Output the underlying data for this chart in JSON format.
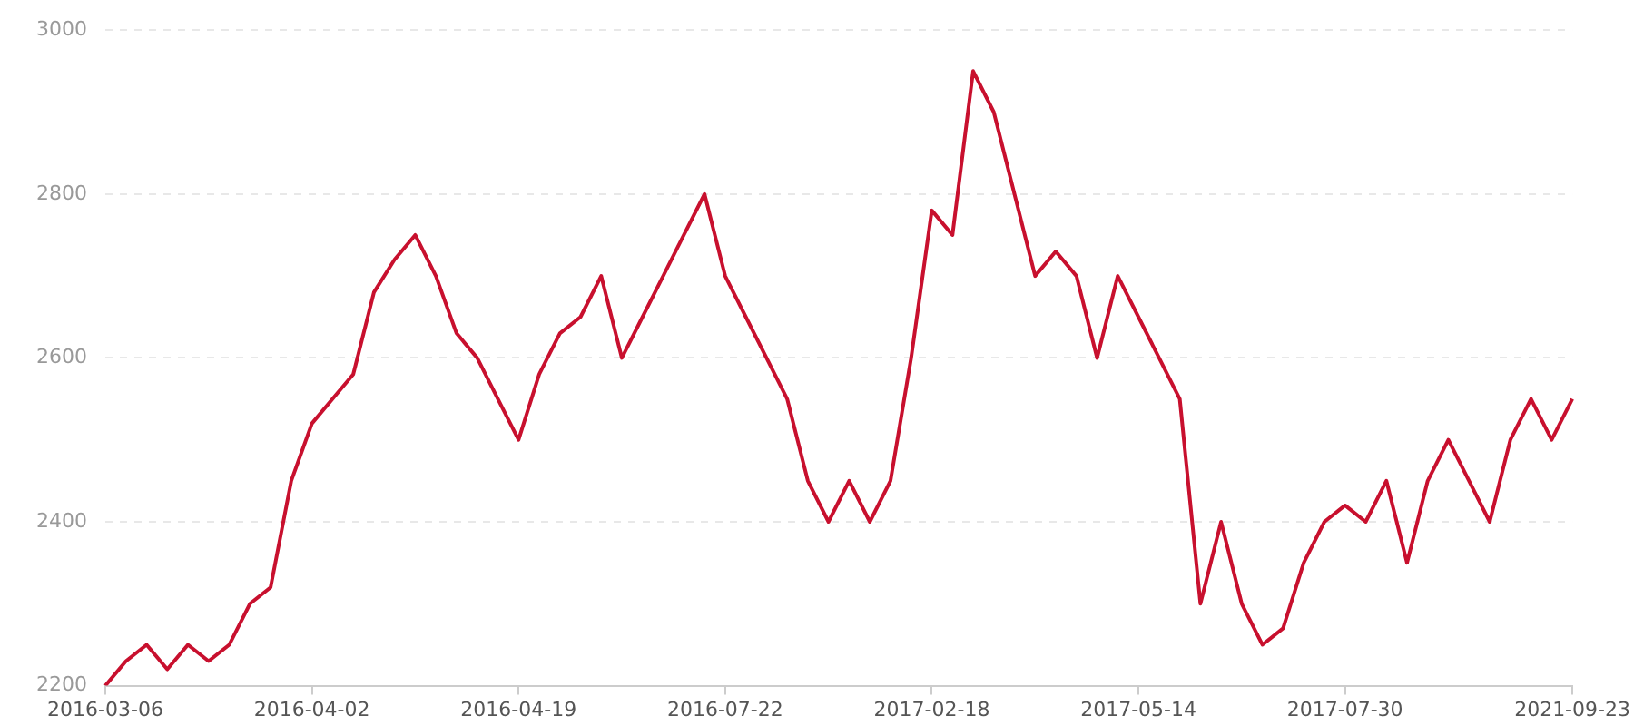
{
  "chart_data": {
    "type": "line",
    "categories": [
      "2016-03-06",
      null,
      null,
      null,
      null,
      null,
      null,
      null,
      null,
      null,
      "2016-04-02",
      null,
      null,
      null,
      null,
      null,
      null,
      null,
      null,
      null,
      "2016-04-19",
      null,
      null,
      null,
      null,
      null,
      null,
      null,
      null,
      null,
      "2016-07-22",
      null,
      null,
      null,
      null,
      null,
      null,
      null,
      null,
      null,
      "2017-02-18",
      null,
      null,
      null,
      null,
      null,
      null,
      null,
      null,
      null,
      "2017-05-14",
      null,
      null,
      null,
      null,
      null,
      null,
      null,
      null,
      null,
      "2017-07-30",
      null,
      null,
      null,
      null,
      null,
      null,
      null,
      null,
      null,
      null,
      "2021-09-23"
    ],
    "series": [
      {
        "color": "#c8102e",
        "values": [
          2200,
          2230,
          2250,
          2220,
          2250,
          2230,
          2250,
          2300,
          2320,
          2450,
          2520,
          2550,
          2580,
          2680,
          2720,
          2750,
          2700,
          2630,
          2600,
          2550,
          2500,
          2580,
          2630,
          2650,
          2700,
          2600,
          2650,
          2700,
          2750,
          2800,
          2700,
          2650,
          2600,
          2550,
          2450,
          2400,
          2450,
          2400,
          2450,
          2600,
          2780,
          2750,
          2950,
          2900,
          2800,
          2700,
          2730,
          2700,
          2600,
          2700,
          2650,
          2600,
          2550,
          2300,
          2400,
          2300,
          2250,
          2270,
          2350,
          2400,
          2420,
          2400,
          2450,
          2350,
          2450,
          2500,
          2450,
          2400,
          2500,
          2550,
          2500,
          2550
        ]
      }
    ],
    "ylim": [
      2200,
      3000
    ],
    "yticks": [
      2200,
      2400,
      2600,
      2800,
      3000
    ],
    "grid": "y",
    "legend": false,
    "marker": "none",
    "line_style": "solid"
  }
}
